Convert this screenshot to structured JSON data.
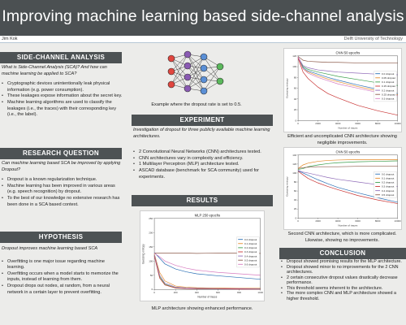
{
  "header": {
    "title": "Improving machine learning based side-channel analysis",
    "author": "Jim Kok",
    "affiliation": "Delft University of Technology"
  },
  "colors": {
    "header_bg": "#4b5052",
    "section_bg": "#4d5254",
    "page_bg": "#ececea"
  },
  "sca": {
    "heading": "SIDE-CHANNEL ANALYSIS",
    "intro": "What is Side-Channel Analysis (SCA)? And how can machine learning be applied to SCA?",
    "bullets": [
      "Cryptographic devices unintentionally leak physical information (e.g. power consumption).",
      "These leakages expose information about the secret key.",
      "Machine learning algorithms are used to classify the leakages (i.e., the traces) with their corresponding key (i.e., the label)."
    ]
  },
  "rq": {
    "heading": "RESEARCH QUESTION",
    "intro": "Can machine learning based SCA be improved by applying Dropout?",
    "bullets": [
      "Dropout is a known regularization technique.",
      "Machine learning has been improved in various areas (e.g. speech recognition) by dropout.",
      "To the best of our knowledge no extensive research has been done in a SCA based context."
    ]
  },
  "hyp": {
    "heading": "HYPOTHESIS",
    "intro": "Dropout improves machine learning based SCA",
    "bullets": [
      "Overfitting is one major issue regarding machine learning.",
      "Overfitting occurs when a model starts to memorize the inputs, instead of learning from them.",
      "Dropout drops out nodes, at random, from a neural network in a certain layer to prevent overfitting."
    ]
  },
  "network": {
    "caption": "Example where the dropout rate is set to 0.5."
  },
  "experiment": {
    "heading": "EXPERIMENT",
    "intro": "Investigation of dropout for three publicly available machine learning architectures.",
    "bullets": [
      "2 Convolutional Neural Networks (CNN) architectures tested.",
      "CNN architectures vary in complexity and efficiency.",
      "1 Multilayer Perceptron (MLP) architecture tested.",
      "ASCAD database (benchmark for SCA community) used for experiments."
    ]
  },
  "results": {
    "heading": "RESULTS",
    "mlp_caption": "MLP architecture showing enhanced performance.",
    "cnn1_caption": "Efficient and uncomplicated CNN architecture showing negligible improvements.",
    "cnn2_caption": "Second CNN architecture, which is more complicated. Likewise, showing no improvements."
  },
  "conclusion": {
    "heading": "CONCLUSION",
    "bullets": [
      "Dropout showed promising results for the MLP architecture.",
      "Dropout showed minor to no improvements for the 2 CNN architectures.",
      "2 certain consecutive dropout values drastically decrease performance.",
      "This threshold seems inherent to the architecture.",
      "The more complex CNN and MLP architecture showed a higher threshold."
    ]
  },
  "chart_data": [
    {
      "type": "line",
      "title": "MLP 250 epochs",
      "xlabel": "Number of traces",
      "ylabel": "Guessing entropy",
      "xlim": [
        0,
        1000
      ],
      "ylim": [
        0,
        250
      ],
      "xticks": [
        0,
        200,
        400,
        600,
        800,
        1000
      ],
      "yticks": [
        0,
        50,
        100,
        150,
        200,
        250
      ],
      "legend": "right",
      "x": [
        0,
        50,
        100,
        200,
        300,
        400,
        600,
        800,
        1000
      ],
      "series": [
        {
          "name": "0.0 dropout",
          "color": "#2a6fb5",
          "values": [
            130,
            110,
            90,
            72,
            62,
            55,
            48,
            42,
            36
          ]
        },
        {
          "name": "0.1 dropout",
          "color": "#e48a2a",
          "values": [
            125,
            60,
            30,
            12,
            8,
            6,
            5,
            4,
            4
          ]
        },
        {
          "name": "0.2 dropout",
          "color": "#3a9e4b",
          "values": [
            120,
            45,
            18,
            6,
            4,
            3,
            2,
            2,
            2
          ]
        },
        {
          "name": "0.3 dropout",
          "color": "#c93434",
          "values": [
            118,
            40,
            16,
            5,
            3,
            2,
            2,
            1,
            1
          ]
        },
        {
          "name": "0.4 dropout",
          "color": "#8f6bb8",
          "values": [
            122,
            50,
            22,
            8,
            5,
            4,
            3,
            3,
            2
          ]
        },
        {
          "name": "0.5 dropout",
          "color": "#8c5a4a",
          "values": [
            128,
            128,
            128,
            128,
            128,
            127,
            128,
            128,
            127
          ]
        },
        {
          "name": "0.6 dropout",
          "color": "#d77cc0",
          "values": [
            128,
            115,
            100,
            85,
            75,
            68,
            60,
            55,
            50
          ]
        }
      ]
    },
    {
      "type": "line",
      "title": "CNN 50 epochs",
      "xlabel": "Number of traces",
      "ylabel": "Guessing entropy",
      "xlim": [
        0,
        10000
      ],
      "ylim": [
        0,
        120
      ],
      "xticks": [
        0,
        2000,
        4000,
        6000,
        8000,
        10000
      ],
      "yticks": [
        0,
        20,
        40,
        60,
        80,
        100,
        120
      ],
      "legend": "right",
      "x": [
        0,
        500,
        1000,
        2000,
        3000,
        4000,
        6000,
        8000,
        10000
      ],
      "series": [
        {
          "name": "0.0 dropout",
          "color": "#2a6fb5",
          "values": [
            118,
            98,
            92,
            86,
            80,
            75,
            66,
            58,
            50
          ]
        },
        {
          "name": "0.05 dropout",
          "color": "#e48a2a",
          "values": [
            117,
            96,
            90,
            83,
            77,
            72,
            63,
            55,
            48
          ]
        },
        {
          "name": "0.1 dropout",
          "color": "#3a9e4b",
          "values": [
            118,
            100,
            95,
            90,
            86,
            82,
            76,
            70,
            65
          ]
        },
        {
          "name": "0.15 dropout",
          "color": "#c93434",
          "values": [
            116,
            90,
            78,
            62,
            50,
            42,
            28,
            18,
            10
          ]
        },
        {
          "name": "0.2 dropout",
          "color": "#8f6bb8",
          "values": [
            118,
            102,
            98,
            94,
            92,
            90,
            88,
            86,
            85
          ]
        },
        {
          "name": "0.25 dropout",
          "color": "#8c5a4a",
          "values": [
            119,
            112,
            110,
            109,
            108,
            108,
            107,
            107,
            107
          ]
        },
        {
          "name": "0.3 dropout",
          "color": "#d77cc0",
          "values": [
            118,
            96,
            88,
            80,
            74,
            68,
            60,
            52,
            46
          ]
        }
      ]
    },
    {
      "type": "line",
      "title": "CNN 50 epochs",
      "xlabel": "Number of traces",
      "ylabel": "Guessing entropy",
      "xlim": [
        0,
        10000
      ],
      "ylim": [
        0,
        140
      ],
      "xticks": [
        0,
        2000,
        4000,
        6000,
        8000,
        10000
      ],
      "yticks": [
        0,
        20,
        40,
        60,
        80,
        100,
        120,
        140
      ],
      "legend": "right",
      "x": [
        0,
        500,
        1000,
        2000,
        3000,
        4000,
        6000,
        8000,
        10000
      ],
      "series": [
        {
          "name": "0.0 dropout",
          "color": "#2a6fb5",
          "values": [
            105,
            100,
            95,
            85,
            76,
            68,
            56,
            45,
            35
          ]
        },
        {
          "name": "0.1 dropout",
          "color": "#e48a2a",
          "values": [
            110,
            118,
            122,
            126,
            128,
            129,
            130,
            130,
            130
          ]
        },
        {
          "name": "0.2 dropout",
          "color": "#3a9e4b",
          "values": [
            108,
            110,
            114,
            118,
            121,
            123,
            125,
            126,
            127
          ]
        },
        {
          "name": "0.3 dropout",
          "color": "#c93434",
          "values": [
            104,
            96,
            88,
            78,
            70,
            63,
            50,
            40,
            32
          ]
        },
        {
          "name": "0.4 dropout",
          "color": "#8f6bb8",
          "values": [
            106,
            102,
            100,
            95,
            90,
            86,
            80,
            74,
            70
          ]
        },
        {
          "name": "0.5 dropout",
          "color": "#8c5a4a",
          "values": [
            110,
            112,
            113,
            114,
            114,
            114,
            115,
            115,
            115
          ]
        }
      ]
    }
  ]
}
